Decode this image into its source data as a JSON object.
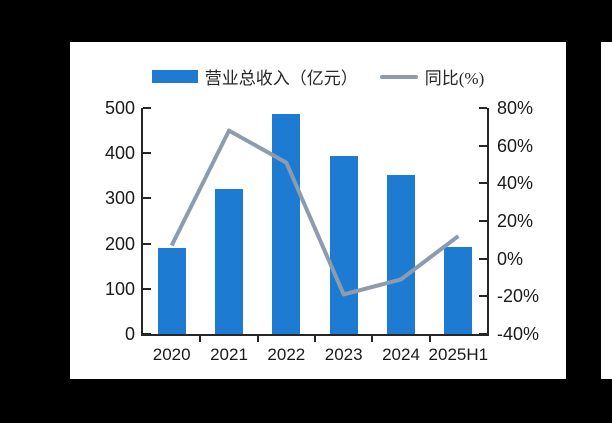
{
  "colors": {
    "background": "#000000",
    "panel": "#ffffff",
    "bar_blue": "#1e7bd2",
    "line_gray": "#8d9baf",
    "axis": "#262626",
    "text": "#1a1a1a"
  },
  "legend": {
    "revenue_label": "营业总收入（亿元）",
    "yoy_label": "同比(%)"
  },
  "chart_data": {
    "type": "bar",
    "subtype": "combo-bar-line-dual-axis",
    "title": "",
    "categories": [
      "2020",
      "2021",
      "2022",
      "2023",
      "2024",
      "2025H1"
    ],
    "series": [
      {
        "name": "营业总收入（亿元）",
        "type": "bar",
        "axis": "left",
        "color": "#1e7bd2",
        "values": [
          191,
          321,
          487,
          394,
          352,
          193
        ]
      },
      {
        "name": "同比(%)",
        "type": "line",
        "axis": "right",
        "color": "#8d9baf",
        "values": [
          7,
          68,
          51,
          -19,
          -11,
          12
        ]
      }
    ],
    "left_axis": {
      "min": 0,
      "max": 500,
      "tick_labels": [
        "500",
        "400",
        "300",
        "200",
        "100",
        "0"
      ]
    },
    "right_axis": {
      "min": -40,
      "max": 80,
      "tick_labels": [
        "80%",
        "60%",
        "40%",
        "20%",
        "0%",
        "-20%",
        "-40%"
      ]
    },
    "grid": false,
    "legend_position": "top"
  }
}
